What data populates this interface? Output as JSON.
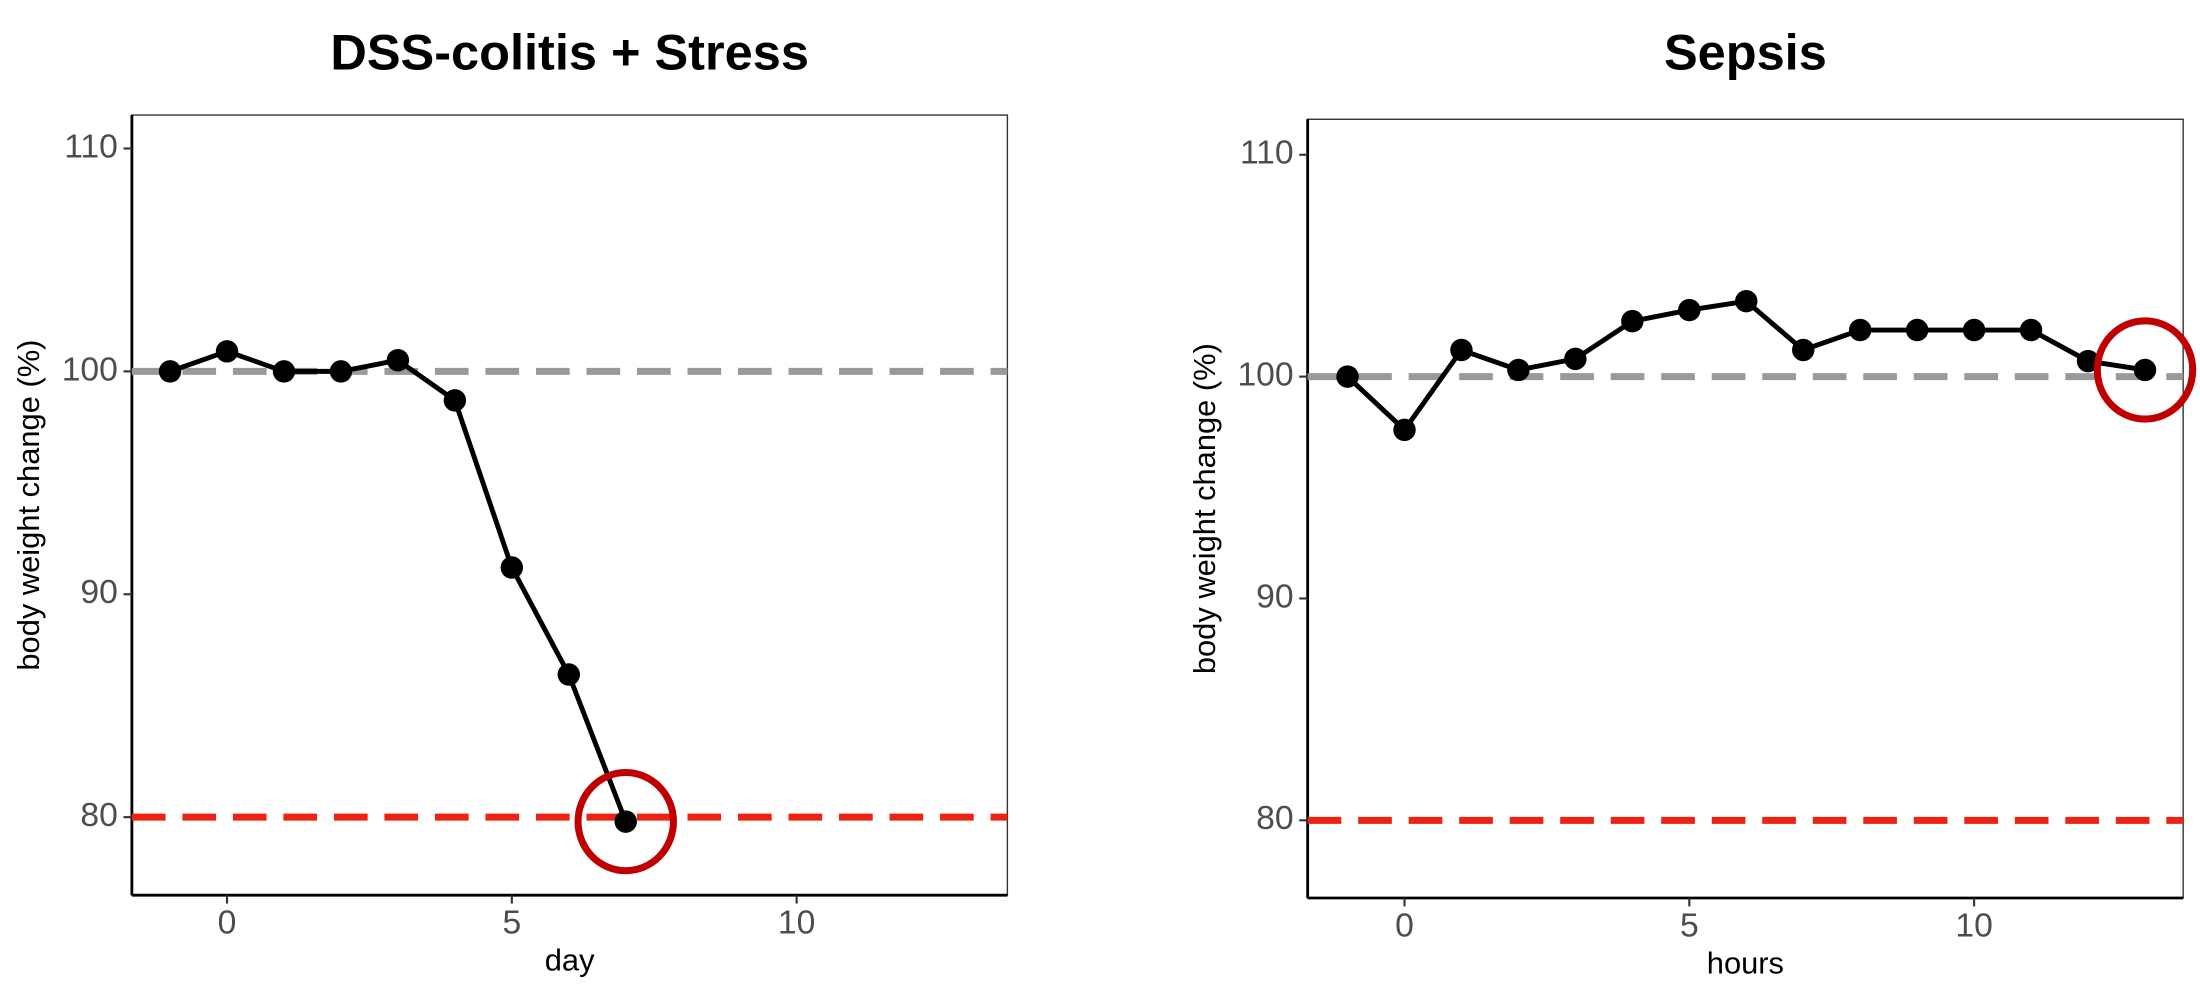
{
  "chart_data": [
    {
      "type": "line",
      "title": "DSS-colitis + Stress",
      "x_label": "day",
      "y_label": "body weight change (%)",
      "x": [
        -1,
        0,
        1,
        2,
        3,
        4,
        5,
        6,
        7
      ],
      "series": [
        {
          "color": "#000000",
          "values": [
            100,
            100.9,
            100,
            100,
            100.5,
            98.7,
            91.2,
            86.4,
            79.8
          ]
        }
      ],
      "hlines": [
        {
          "value": 100,
          "color": "#999999"
        },
        {
          "value": 80,
          "color": "#ee2211"
        }
      ],
      "xlim": [
        -1.67,
        13.7
      ],
      "ylim": [
        76.5,
        111.5
      ],
      "xticks": [
        0,
        5,
        10
      ],
      "yticks": [
        80,
        90,
        100,
        110
      ]
    },
    {
      "type": "line",
      "title": "Sepsis",
      "x_label": "hours",
      "y_label": "body weight change (%)",
      "x": [
        -1,
        0,
        1,
        2,
        3,
        4,
        5,
        6,
        7,
        8,
        9,
        10,
        11,
        12,
        13
      ],
      "series": [
        {
          "color": "#000000",
          "values": [
            100,
            97.6,
            101.2,
            100.3,
            100.8,
            102.5,
            103,
            103.4,
            101.2,
            102.1,
            102.1,
            102.1,
            102.1,
            100.7,
            100.3
          ]
        }
      ],
      "hlines": [
        {
          "value": 100,
          "color": "#999999"
        },
        {
          "value": 80,
          "color": "#ee2211"
        }
      ],
      "xlim": [
        -1.7,
        13.67
      ],
      "ylim": [
        76.5,
        111.6
      ],
      "xticks": [
        0,
        5,
        10
      ],
      "yticks": [
        80,
        90,
        100,
        110
      ]
    }
  ]
}
